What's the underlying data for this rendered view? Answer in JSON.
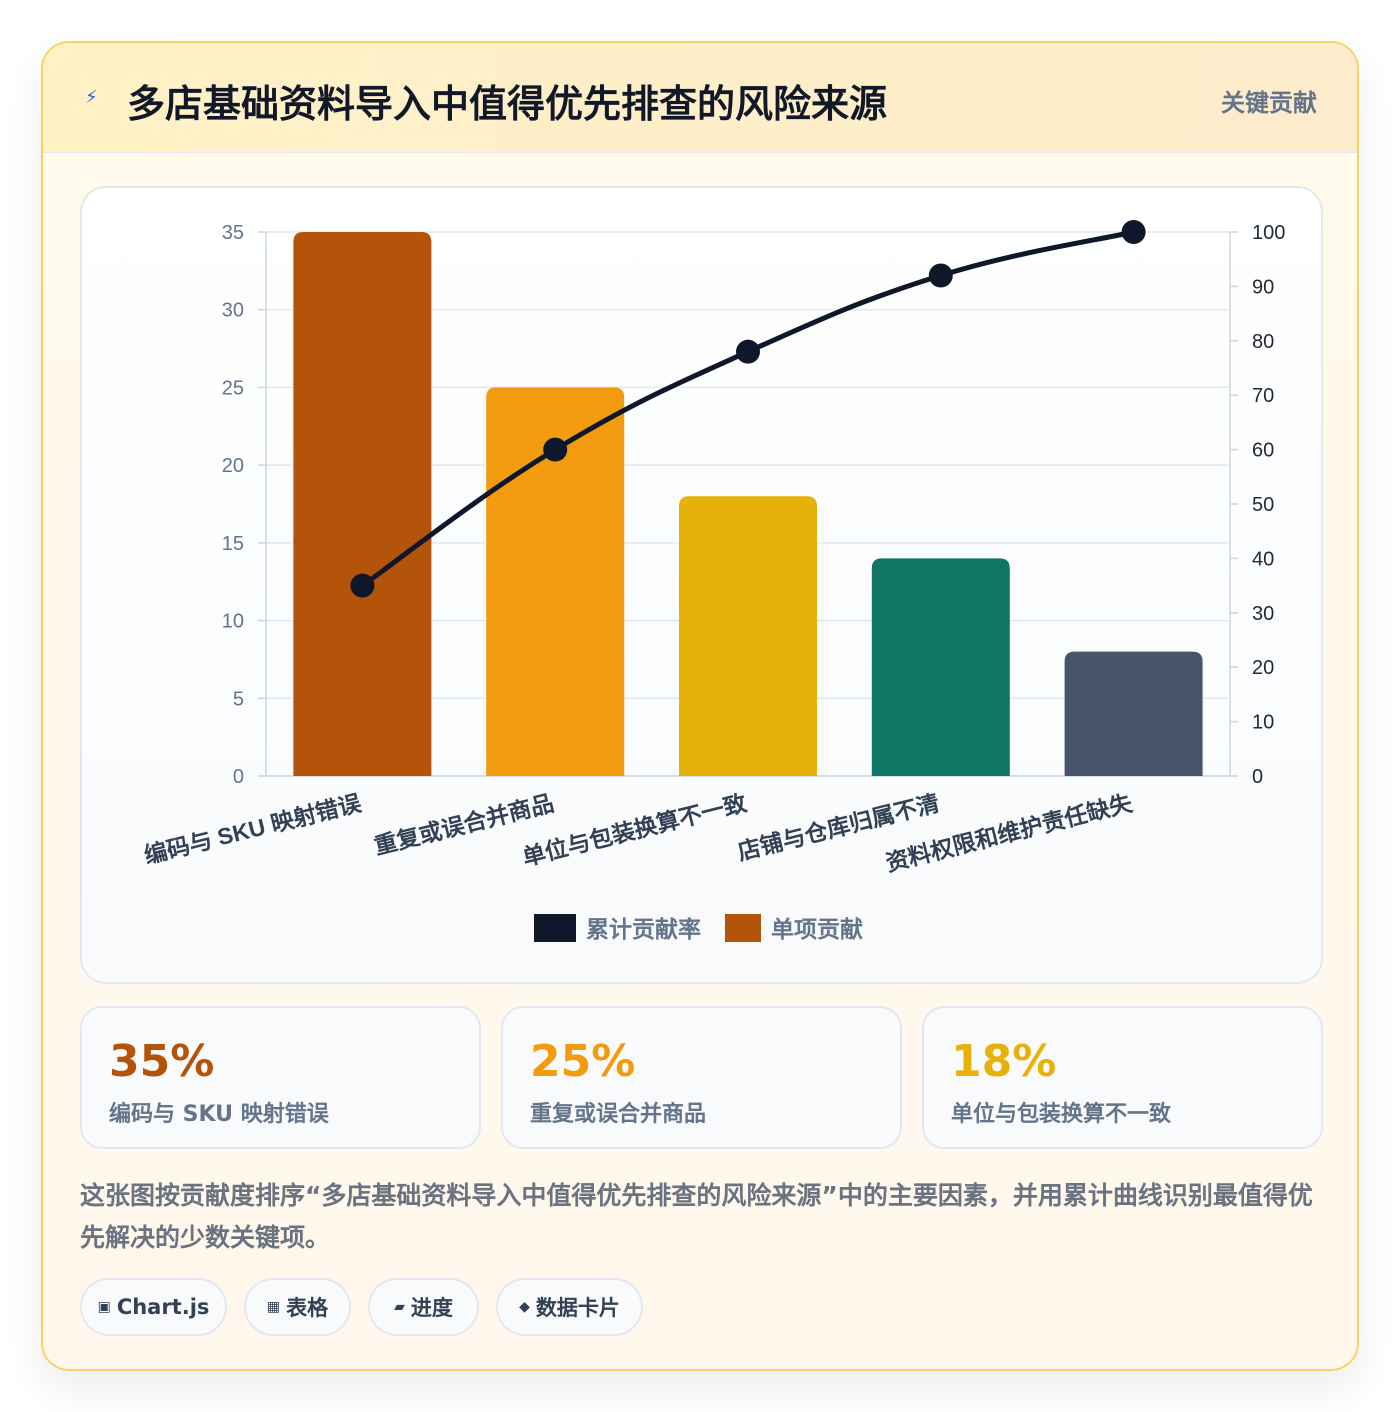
{
  "header": {
    "icon": "lightning-icon",
    "title": "多店基础资料导入中值得优先排查的风险来源",
    "badge": "关键贡献"
  },
  "chart_data": {
    "type": "bar",
    "categories": [
      "编码与 SKU 映射错误",
      "重复或误合并商品",
      "单位与包装换算不一致",
      "店铺与仓库归属不清",
      "资料权限和维护责任缺失"
    ],
    "series": [
      {
        "name": "累计贡献率",
        "type": "line",
        "axis": "right",
        "color": "#0f172a",
        "values": [
          35,
          60,
          78,
          92,
          100
        ]
      },
      {
        "name": "单项贡献",
        "type": "bar",
        "axis": "left",
        "colors": [
          "#b4530a",
          "#f29b0e",
          "#e6b20a",
          "#117565",
          "#475569"
        ],
        "values": [
          35,
          25,
          18,
          14,
          8
        ]
      }
    ],
    "left_axis": {
      "ylim": [
        0,
        35
      ],
      "ticks": [
        "0",
        "5",
        "10",
        "15",
        "20",
        "25",
        "30",
        "35"
      ]
    },
    "right_axis": {
      "ylim": [
        0,
        100
      ],
      "ticks": [
        "0",
        "10",
        "20",
        "30",
        "40",
        "50",
        "60",
        "70",
        "80",
        "90",
        "100"
      ]
    },
    "grid": true,
    "legend": "bottom",
    "legend_swatch_colors": [
      "#0f172a",
      "#b4530a"
    ]
  },
  "stats": [
    {
      "value": "35%",
      "label": "编码与 SKU 映射错误",
      "color": "#b4530a"
    },
    {
      "value": "25%",
      "label": "重复或误合并商品",
      "color": "#f29b0e"
    },
    {
      "value": "18%",
      "label": "单位与包装换算不一致",
      "color": "#e6b20a"
    }
  ],
  "description": "这张图按贡献度排序“多店基础资料导入中值得优先排查的风险来源”中的主要因素，并用累计曲线识别最值得优先解决的少数关键项。",
  "tags": [
    {
      "icon": "chart-icon",
      "glyph": "▣",
      "label": "Chart.js"
    },
    {
      "icon": "table-icon",
      "glyph": "▦",
      "label": "表格"
    },
    {
      "icon": "progress-icon",
      "glyph": "▰",
      "label": "进度"
    },
    {
      "icon": "data-card-icon",
      "glyph": "◆",
      "label": "数据卡片"
    }
  ]
}
